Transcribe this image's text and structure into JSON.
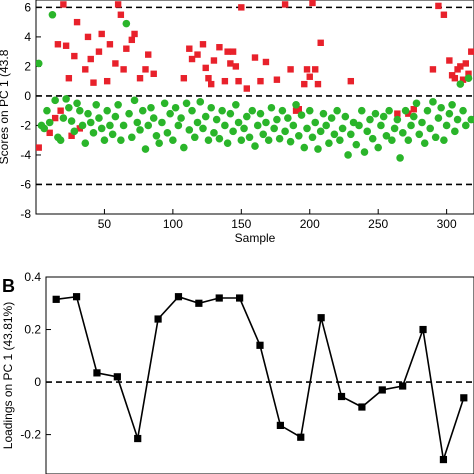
{
  "chart_data": [
    {
      "panel_label": "",
      "type": "scatter",
      "xlabel": "Sample",
      "ylabel": "Scores on PC 1 (43.8",
      "xlim": [
        0,
        320
      ],
      "ylim": [
        -8,
        6.5
      ],
      "xticks": [
        50,
        100,
        150,
        200,
        250,
        300
      ],
      "yticks": [
        -8,
        -6,
        -4,
        -2,
        0,
        2,
        4,
        6
      ],
      "reference_lines_y": [
        6,
        0,
        -6
      ],
      "grid": false,
      "series": [
        {
          "color": "#e8212b",
          "marker": "square",
          "points": [
            [
              2,
              -3.5
            ],
            [
              10,
              -2.5
            ],
            [
              14,
              -1.5
            ],
            [
              16,
              3.5
            ],
            [
              18,
              -1.0
            ],
            [
              20,
              6.2
            ],
            [
              22,
              3.4
            ],
            [
              24,
              1.2
            ],
            [
              26,
              -2.7
            ],
            [
              28,
              2.7
            ],
            [
              30,
              5.0
            ],
            [
              32,
              -2.2
            ],
            [
              36,
              1.8
            ],
            [
              38,
              4.0
            ],
            [
              40,
              2.5
            ],
            [
              42,
              0.9
            ],
            [
              46,
              3.0
            ],
            [
              48,
              4.2
            ],
            [
              52,
              1.0
            ],
            [
              54,
              3.5
            ],
            [
              58,
              2.2
            ],
            [
              60,
              6.2
            ],
            [
              62,
              5.5
            ],
            [
              64,
              1.8
            ],
            [
              66,
              3.2
            ],
            [
              70,
              3.8
            ],
            [
              72,
              4.2
            ],
            [
              76,
              1.2
            ],
            [
              80,
              1.8
            ],
            [
              82,
              2.8
            ],
            [
              86,
              1.5
            ],
            [
              108,
              1.2
            ],
            [
              112,
              3.2
            ],
            [
              114,
              2.5
            ],
            [
              118,
              2.8
            ],
            [
              122,
              3.5
            ],
            [
              124,
              1.9
            ],
            [
              126,
              1.2
            ],
            [
              128,
              0.8
            ],
            [
              130,
              2.4
            ],
            [
              134,
              3.3
            ],
            [
              138,
              1.0
            ],
            [
              140,
              3.0
            ],
            [
              142,
              2.2
            ],
            [
              144,
              3.0
            ],
            [
              146,
              2.0
            ],
            [
              148,
              1.0
            ],
            [
              150,
              6.0
            ],
            [
              154,
              0.5
            ],
            [
              160,
              2.6
            ],
            [
              164,
              1.0
            ],
            [
              168,
              2.3
            ],
            [
              176,
              1.1
            ],
            [
              182,
              6.2
            ],
            [
              186,
              1.8
            ],
            [
              190,
              -1.0
            ],
            [
              192,
              -0.9
            ],
            [
              196,
              0.8
            ],
            [
              198,
              1.8
            ],
            [
              200,
              1.3
            ],
            [
              202,
              6.3
            ],
            [
              204,
              1.8
            ],
            [
              206,
              0.8
            ],
            [
              208,
              3.6
            ],
            [
              230,
              1.0
            ],
            [
              264,
              -1.2
            ],
            [
              272,
              -1.2
            ],
            [
              276,
              -0.9
            ],
            [
              290,
              1.8
            ],
            [
              294,
              6.1
            ],
            [
              298,
              5.5
            ],
            [
              302,
              2.4
            ],
            [
              304,
              1.4
            ],
            [
              306,
              1.2
            ],
            [
              308,
              1.8
            ],
            [
              310,
              2.0
            ],
            [
              312,
              1.1
            ],
            [
              314,
              2.2
            ],
            [
              316,
              1.5
            ],
            [
              318,
              3.0
            ]
          ]
        },
        {
          "color": "#2ab52a",
          "marker": "circle",
          "points": [
            [
              2,
              2.2
            ],
            [
              4,
              -2.0
            ],
            [
              6,
              -2.2
            ],
            [
              8,
              -1.0
            ],
            [
              10,
              -1.8
            ],
            [
              12,
              5.5
            ],
            [
              14,
              -0.3
            ],
            [
              16,
              -2.8
            ],
            [
              18,
              -3.0
            ],
            [
              20,
              -1.5
            ],
            [
              22,
              -0.2
            ],
            [
              24,
              -0.8
            ],
            [
              26,
              -1.7
            ],
            [
              28,
              -2.4
            ],
            [
              30,
              -0.5
            ],
            [
              32,
              -1.0
            ],
            [
              34,
              -2.0
            ],
            [
              36,
              -3.2
            ],
            [
              38,
              -1.2
            ],
            [
              40,
              -1.8
            ],
            [
              42,
              -2.5
            ],
            [
              44,
              -0.6
            ],
            [
              46,
              -1.5
            ],
            [
              48,
              -2.2
            ],
            [
              50,
              -3.0
            ],
            [
              52,
              -1.0
            ],
            [
              54,
              -2.0
            ],
            [
              56,
              -2.6
            ],
            [
              58,
              -1.4
            ],
            [
              60,
              -0.6
            ],
            [
              62,
              -3.0
            ],
            [
              64,
              -2.0
            ],
            [
              66,
              4.9
            ],
            [
              68,
              -1.2
            ],
            [
              70,
              -2.8
            ],
            [
              72,
              -0.3
            ],
            [
              74,
              -1.8
            ],
            [
              76,
              -2.3
            ],
            [
              78,
              -1.0
            ],
            [
              80,
              -3.6
            ],
            [
              82,
              -2.0
            ],
            [
              84,
              -0.8
            ],
            [
              86,
              -1.5
            ],
            [
              88,
              -2.7
            ],
            [
              90,
              -3.2
            ],
            [
              92,
              -1.8
            ],
            [
              94,
              -0.5
            ],
            [
              96,
              -2.5
            ],
            [
              98,
              -1.2
            ],
            [
              100,
              -3.0
            ],
            [
              102,
              -0.8
            ],
            [
              104,
              -2.0
            ],
            [
              106,
              -1.5
            ],
            [
              108,
              -3.5
            ],
            [
              110,
              -0.5
            ],
            [
              112,
              -2.3
            ],
            [
              114,
              -1.0
            ],
            [
              116,
              -2.8
            ],
            [
              118,
              -1.8
            ],
            [
              120,
              -0.4
            ],
            [
              122,
              -2.2
            ],
            [
              124,
              -1.4
            ],
            [
              126,
              -3.0
            ],
            [
              128,
              -0.8
            ],
            [
              130,
              -2.5
            ],
            [
              132,
              -1.6
            ],
            [
              134,
              -2.9
            ],
            [
              136,
              -1.0
            ],
            [
              138,
              -2.0
            ],
            [
              140,
              -3.2
            ],
            [
              142,
              -1.2
            ],
            [
              144,
              -2.4
            ],
            [
              146,
              -0.6
            ],
            [
              148,
              -1.8
            ],
            [
              150,
              -3.0
            ],
            [
              152,
              -2.2
            ],
            [
              154,
              -1.4
            ],
            [
              156,
              -2.8
            ],
            [
              158,
              -1.0
            ],
            [
              160,
              -3.4
            ],
            [
              162,
              -2.0
            ],
            [
              164,
              -1.2
            ],
            [
              166,
              -2.6
            ],
            [
              168,
              -1.8
            ],
            [
              170,
              -3.0
            ],
            [
              172,
              -0.8
            ],
            [
              174,
              -2.2
            ],
            [
              176,
              -1.6
            ],
            [
              178,
              -2.9
            ],
            [
              180,
              -1.0
            ],
            [
              182,
              -2.4
            ],
            [
              184,
              -1.5
            ],
            [
              186,
              -3.1
            ],
            [
              188,
              -2.0
            ],
            [
              190,
              -0.6
            ],
            [
              192,
              -2.7
            ],
            [
              194,
              -1.3
            ],
            [
              196,
              -3.5
            ],
            [
              198,
              -2.2
            ],
            [
              200,
              -1.0
            ],
            [
              202,
              -2.8
            ],
            [
              204,
              -1.8
            ],
            [
              206,
              -3.6
            ],
            [
              208,
              -2.4
            ],
            [
              210,
              -1.2
            ],
            [
              212,
              -2.0
            ],
            [
              214,
              -3.2
            ],
            [
              216,
              -1.5
            ],
            [
              218,
              -2.6
            ],
            [
              220,
              -1.0
            ],
            [
              222,
              -3.0
            ],
            [
              224,
              -2.2
            ],
            [
              226,
              -1.4
            ],
            [
              228,
              -4.0
            ],
            [
              230,
              -2.6
            ],
            [
              232,
              -1.8
            ],
            [
              234,
              -3.3
            ],
            [
              236,
              -2.0
            ],
            [
              238,
              -1.0
            ],
            [
              240,
              -3.8
            ],
            [
              242,
              -2.4
            ],
            [
              244,
              -1.6
            ],
            [
              246,
              -2.9
            ],
            [
              248,
              -1.2
            ],
            [
              250,
              -3.5
            ],
            [
              252,
              -2.0
            ],
            [
              254,
              -1.4
            ],
            [
              256,
              -2.7
            ],
            [
              258,
              -1.0
            ],
            [
              260,
              -3.0
            ],
            [
              262,
              -2.2
            ],
            [
              264,
              -1.6
            ],
            [
              266,
              -4.2
            ],
            [
              268,
              -2.5
            ],
            [
              270,
              -1.0
            ],
            [
              272,
              -3.0
            ],
            [
              274,
              -2.0
            ],
            [
              276,
              -1.4
            ],
            [
              278,
              -0.5
            ],
            [
              280,
              -2.6
            ],
            [
              282,
              -1.8
            ],
            [
              284,
              -3.2
            ],
            [
              286,
              -1.0
            ],
            [
              288,
              -2.2
            ],
            [
              290,
              -0.4
            ],
            [
              292,
              -2.8
            ],
            [
              294,
              -1.5
            ],
            [
              296,
              -0.8
            ],
            [
              298,
              -3.0
            ],
            [
              300,
              -2.0
            ],
            [
              302,
              -1.2
            ],
            [
              304,
              -0.6
            ],
            [
              306,
              -2.4
            ],
            [
              308,
              -1.6
            ],
            [
              310,
              0.8
            ],
            [
              312,
              -1.0
            ],
            [
              314,
              -2.0
            ],
            [
              316,
              1.2
            ],
            [
              318,
              -1.6
            ]
          ]
        }
      ]
    },
    {
      "panel_label": "B",
      "type": "line",
      "xlabel": "",
      "ylabel": "Loadings on PC 1 (43.81%)",
      "xlim": [
        0.5,
        21.5
      ],
      "ylim": [
        -0.35,
        0.4
      ],
      "yticks": [
        -0.2,
        0,
        0.2,
        0.4
      ],
      "reference_lines_y": [
        0
      ],
      "grid": false,
      "series": [
        {
          "color": "#000000",
          "marker": "square",
          "x": [
            1,
            2,
            3,
            4,
            5,
            6,
            7,
            8,
            9,
            10,
            11,
            12,
            13,
            14,
            15,
            16,
            17,
            18,
            19,
            20,
            21
          ],
          "values": [
            0.315,
            0.325,
            0.035,
            0.02,
            -0.215,
            0.24,
            0.325,
            0.3,
            0.32,
            0.32,
            0.14,
            -0.165,
            -0.21,
            0.245,
            -0.055,
            -0.095,
            -0.03,
            -0.015,
            0.2,
            -0.295,
            -0.06
          ]
        }
      ]
    }
  ]
}
